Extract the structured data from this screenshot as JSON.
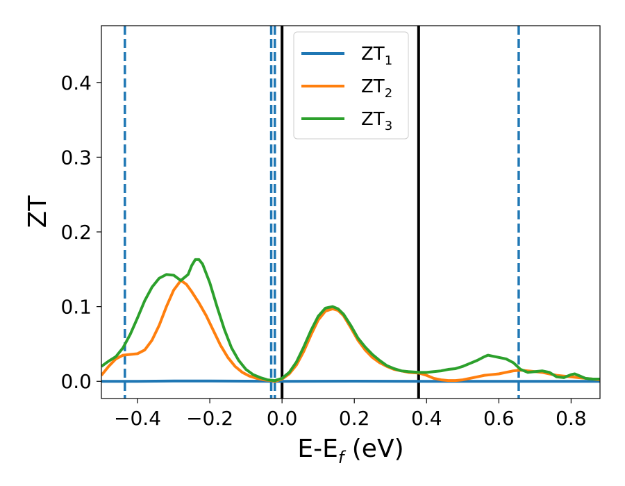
{
  "chart_data": {
    "type": "line",
    "xlabel": {
      "main": "E-E",
      "sub": "f",
      "suffix": " (eV)"
    },
    "ylabel": "ZT",
    "xlim": [
      -0.5,
      0.88
    ],
    "ylim": [
      -0.023,
      0.476
    ],
    "xticks": [
      {
        "value": -0.4,
        "label": "−0.4"
      },
      {
        "value": -0.2,
        "label": "−0.2"
      },
      {
        "value": 0.0,
        "label": "0.0"
      },
      {
        "value": 0.2,
        "label": "0.2"
      },
      {
        "value": 0.4,
        "label": "0.4"
      },
      {
        "value": 0.6,
        "label": "0.6"
      },
      {
        "value": 0.8,
        "label": "0.8"
      }
    ],
    "yticks": [
      {
        "value": 0.0,
        "label": "0.0"
      },
      {
        "value": 0.1,
        "label": "0.1"
      },
      {
        "value": 0.2,
        "label": "0.2"
      },
      {
        "value": 0.3,
        "label": "0.3"
      },
      {
        "value": 0.4,
        "label": "0.4"
      }
    ],
    "grid": false,
    "legend_position": "upper center",
    "series": [
      {
        "name": "ZT",
        "name_sub": "1",
        "color": "#1f77b4",
        "x": [
          -0.5,
          -0.4,
          -0.3,
          -0.2,
          -0.1,
          -0.02,
          0.0,
          0.1,
          0.2,
          0.3,
          0.4,
          0.5,
          0.6,
          0.7,
          0.8,
          0.88
        ],
        "y": [
          0.0,
          0.0,
          0.0005,
          0.0005,
          0.0002,
          0.0,
          0.0,
          0.0001,
          0.0002,
          0.0001,
          0.0,
          0.0,
          0.0,
          0.0,
          0.0,
          0.0
        ]
      },
      {
        "name": "ZT",
        "name_sub": "2",
        "color": "#ff7f0e",
        "x": [
          -0.5,
          -0.48,
          -0.46,
          -0.44,
          -0.42,
          -0.4,
          -0.38,
          -0.36,
          -0.34,
          -0.32,
          -0.3,
          -0.28,
          -0.265,
          -0.25,
          -0.23,
          -0.21,
          -0.19,
          -0.17,
          -0.15,
          -0.13,
          -0.11,
          -0.09,
          -0.07,
          -0.05,
          -0.03,
          -0.02,
          0.0,
          0.02,
          0.04,
          0.06,
          0.08,
          0.1,
          0.12,
          0.14,
          0.155,
          0.17,
          0.19,
          0.21,
          0.23,
          0.25,
          0.27,
          0.29,
          0.31,
          0.33,
          0.35,
          0.38,
          0.4,
          0.42,
          0.44,
          0.46,
          0.48,
          0.5,
          0.52,
          0.54,
          0.56,
          0.58,
          0.6,
          0.62,
          0.64,
          0.66,
          0.68,
          0.7,
          0.72,
          0.74,
          0.76,
          0.78,
          0.8,
          0.82,
          0.84,
          0.86,
          0.88
        ],
        "y": [
          0.008,
          0.02,
          0.03,
          0.035,
          0.036,
          0.037,
          0.042,
          0.055,
          0.075,
          0.1,
          0.122,
          0.135,
          0.13,
          0.12,
          0.105,
          0.088,
          0.068,
          0.048,
          0.032,
          0.02,
          0.012,
          0.007,
          0.004,
          0.002,
          0.001,
          0.0,
          0.003,
          0.01,
          0.022,
          0.04,
          0.062,
          0.082,
          0.094,
          0.097,
          0.095,
          0.088,
          0.072,
          0.055,
          0.042,
          0.032,
          0.025,
          0.02,
          0.016,
          0.014,
          0.012,
          0.011,
          0.008,
          0.004,
          0.002,
          0.001,
          0.001,
          0.002,
          0.004,
          0.006,
          0.008,
          0.009,
          0.01,
          0.012,
          0.014,
          0.015,
          0.014,
          0.013,
          0.012,
          0.01,
          0.008,
          0.007,
          0.006,
          0.005,
          0.004,
          0.003,
          0.002
        ]
      },
      {
        "name": "ZT",
        "name_sub": "3",
        "color": "#2ca02c",
        "x": [
          -0.5,
          -0.48,
          -0.46,
          -0.44,
          -0.42,
          -0.4,
          -0.38,
          -0.36,
          -0.34,
          -0.32,
          -0.3,
          -0.28,
          -0.26,
          -0.25,
          -0.24,
          -0.23,
          -0.22,
          -0.2,
          -0.18,
          -0.16,
          -0.14,
          -0.12,
          -0.1,
          -0.08,
          -0.06,
          -0.04,
          -0.02,
          0.0,
          0.02,
          0.04,
          0.06,
          0.08,
          0.1,
          0.12,
          0.14,
          0.155,
          0.17,
          0.19,
          0.21,
          0.23,
          0.25,
          0.27,
          0.29,
          0.31,
          0.33,
          0.35,
          0.38,
          0.4,
          0.42,
          0.44,
          0.46,
          0.48,
          0.5,
          0.52,
          0.54,
          0.56,
          0.57,
          0.58,
          0.6,
          0.62,
          0.64,
          0.66,
          0.68,
          0.7,
          0.72,
          0.74,
          0.76,
          0.78,
          0.8,
          0.81,
          0.82,
          0.84,
          0.86,
          0.88
        ],
        "y": [
          0.02,
          0.027,
          0.033,
          0.045,
          0.063,
          0.085,
          0.108,
          0.126,
          0.138,
          0.143,
          0.142,
          0.135,
          0.143,
          0.155,
          0.163,
          0.163,
          0.157,
          0.132,
          0.1,
          0.07,
          0.045,
          0.028,
          0.016,
          0.009,
          0.005,
          0.002,
          0.001,
          0.004,
          0.012,
          0.026,
          0.046,
          0.068,
          0.087,
          0.098,
          0.1,
          0.097,
          0.09,
          0.075,
          0.058,
          0.046,
          0.036,
          0.028,
          0.021,
          0.017,
          0.014,
          0.013,
          0.012,
          0.012,
          0.013,
          0.014,
          0.016,
          0.017,
          0.02,
          0.024,
          0.028,
          0.033,
          0.035,
          0.034,
          0.032,
          0.03,
          0.025,
          0.016,
          0.012,
          0.013,
          0.014,
          0.012,
          0.006,
          0.005,
          0.009,
          0.01,
          0.008,
          0.004,
          0.003,
          0.003
        ]
      }
    ],
    "vlines": [
      {
        "x": -0.435,
        "style": "dashed",
        "color": "#1f77b4"
      },
      {
        "x": -0.03,
        "style": "dashed",
        "color": "#1f77b4"
      },
      {
        "x": -0.02,
        "style": "dashed",
        "color": "#1f77b4"
      },
      {
        "x": 0.0,
        "style": "solid",
        "color": "#000000"
      },
      {
        "x": 0.378,
        "style": "solid",
        "color": "#000000"
      },
      {
        "x": 0.655,
        "style": "dashed",
        "color": "#1f77b4"
      }
    ]
  }
}
